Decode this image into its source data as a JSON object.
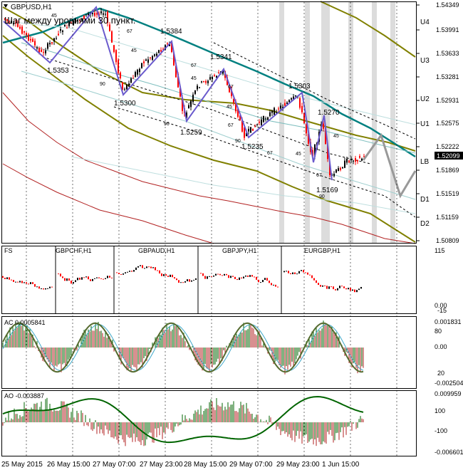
{
  "window": {
    "symbol_label": "GBPUSD,H1",
    "header_text": "Шаг между уровнями 30 пункт."
  },
  "colors": {
    "background": "#ffffff",
    "grid": "#000000",
    "bull_candle": "#000000",
    "bear_candle": "#ff0000",
    "zigzag": "#6a5acd",
    "channel_mid": "#008080",
    "outer_band": "#808000",
    "lower_band": "#b22222",
    "forecast": "#999999",
    "session_shade": "#dcdcdc",
    "osc_up": "#006400",
    "osc_down": "#b22222"
  },
  "price_axis": {
    "labels": [
      "1.54349",
      "1.53991",
      "1.53633",
      "1.53281",
      "1.52931",
      "1.52575",
      "1.52222",
      "1.51869",
      "1.51519",
      "1.51159",
      "1.50809"
    ],
    "current_price": "1.52099"
  },
  "level_labels": [
    "U4",
    "U3",
    "U2",
    "U1",
    "LB",
    "D1",
    "D2"
  ],
  "swing_labels": [
    "1.5353",
    "1.5300",
    "1.5384",
    "1.5259",
    "1.5341",
    "1.5235",
    "1.5303",
    "1.5270",
    "1.5169"
  ],
  "step_labels": [
    "45",
    "67",
    "45",
    "90",
    "67",
    "45",
    "67",
    "90",
    "45",
    "67",
    "90",
    "67",
    "90"
  ],
  "cross_pairs": {
    "label": "FS",
    "pairs": [
      "GBPCHF,H1",
      "GBPAUD,H1",
      "GBPJPY,H1",
      "EURGBP,H1"
    ],
    "axis": [
      "115",
      "0.00",
      "-15"
    ]
  },
  "ac_panel": {
    "label": "AC 0.0005841",
    "axis": [
      "0.001831",
      "80",
      "0.00",
      "20",
      "-0.002504"
    ]
  },
  "ao_panel": {
    "label": "AO -0.003887",
    "axis": [
      "0.009959",
      "100",
      "-100",
      "-0.006601"
    ]
  },
  "time_axis": [
    "25 May 2015",
    "26 May 15:00",
    "27 May 07:00",
    "27 May 23:00",
    "28 May 15:00",
    "29 May 07:00",
    "29 May 23:00",
    "1 Jun 15:00"
  ]
}
